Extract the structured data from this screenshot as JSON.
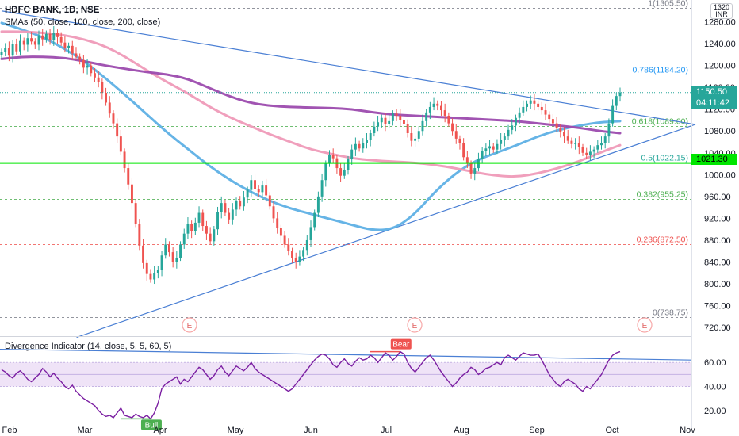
{
  "header": {
    "title": "HDFC BANK, 1D, NSE",
    "sma_legend": "SMAs (50, close, 100, close, 200, close)",
    "oscillator_legend": "Divergence Indicator (14, close, 5, 5, 60, 5)",
    "currency_top": "1320",
    "currency_code": "INR"
  },
  "price_tags": {
    "last_price": "1150.50",
    "countdown": "04:11:42",
    "level": "1021.30"
  },
  "colors": {
    "up": "#26a69a",
    "down": "#ef5350",
    "sma50": "#5eb0e5",
    "sma100": "#ef9ab8",
    "sma200": "#9c4bae",
    "trendline": "#4a7fd4",
    "level_line": "#00e600",
    "rsi_line": "#7b1fa2",
    "rsi_band": "#efe3f7",
    "fib_1": "#787b86",
    "fib_0786": "#2196f3",
    "fib_0618": "#4caf50",
    "fib_05": "#26a69a",
    "fib_0382": "#4caf50",
    "fib_0236": "#ef5350",
    "fib_0": "#787b86",
    "bull_tag": "#4caf50",
    "bear_tag": "#ef5350"
  },
  "chart_data": [
    {
      "type": "candlestick",
      "y_ticks": [
        720,
        760,
        800,
        840,
        880,
        920,
        960,
        1000,
        1040,
        1080,
        1120,
        1160,
        1200,
        1240,
        1280
      ],
      "ylim": [
        710,
        1320
      ],
      "x_ticks": [
        "Feb",
        "Mar",
        "Apr",
        "May",
        "Jun",
        "Jul",
        "Aug",
        "Sep",
        "Oct",
        "Nov"
      ],
      "fib_levels": [
        {
          "label": "1(1305.50)",
          "value": 1305.5,
          "color_key": "fib_1"
        },
        {
          "label": "0.786(1184.20)",
          "value": 1184.2,
          "color_key": "fib_0786"
        },
        {
          "label": "0.618(1089.00)",
          "value": 1089.0,
          "color_key": "fib_0618"
        },
        {
          "label": "0.5(1022.15)",
          "value": 1022.15,
          "color_key": "fib_05"
        },
        {
          "label": "0.382(955.25)",
          "value": 955.25,
          "color_key": "fib_0382"
        },
        {
          "label": "0.236(872.50)",
          "value": 872.5,
          "color_key": "fib_0236"
        },
        {
          "label": "0(738.75)",
          "value": 738.75,
          "color_key": "fib_0"
        }
      ],
      "horizontal_level": 1021.3,
      "last_price": 1150.5,
      "earnings_markers": [
        "E",
        "E",
        "E"
      ],
      "closes": [
        1225,
        1232,
        1218,
        1240,
        1226,
        1245,
        1238,
        1250,
        1244,
        1238,
        1255,
        1248,
        1258,
        1246,
        1260,
        1252,
        1242,
        1232,
        1236,
        1222,
        1216,
        1210,
        1196,
        1200,
        1186,
        1178,
        1170,
        1150,
        1132,
        1112,
        1094,
        1070,
        1042,
        1012,
        982,
        948,
        910,
        870,
        838,
        818,
        808,
        820,
        826,
        852,
        872,
        858,
        840,
        848,
        872,
        892,
        910,
        896,
        912,
        930,
        906,
        892,
        878,
        900,
        932,
        948,
        930,
        918,
        936,
        952,
        942,
        958,
        972,
        990,
        974,
        968,
        980,
        962,
        942,
        920,
        902,
        888,
        872,
        860,
        848,
        840,
        850,
        862,
        880,
        904,
        930,
        960,
        990,
        1020,
        1036,
        1030,
        1012,
        998,
        1008,
        1028,
        1046,
        1056,
        1048,
        1058,
        1064,
        1076,
        1088,
        1096,
        1104,
        1092,
        1098,
        1112,
        1108,
        1100,
        1092,
        1076,
        1062,
        1066,
        1080,
        1098,
        1114,
        1124,
        1130,
        1126,
        1118,
        1108,
        1094,
        1080,
        1066,
        1058,
        1032,
        1020,
        1002,
        1012,
        1028,
        1044,
        1048,
        1052,
        1046,
        1056,
        1064,
        1070,
        1082,
        1090,
        1104,
        1114,
        1124,
        1130,
        1136,
        1130,
        1124,
        1118,
        1110,
        1102,
        1094,
        1086,
        1078,
        1070,
        1062,
        1056,
        1058,
        1050,
        1040,
        1036,
        1042,
        1046,
        1054,
        1058,
        1070,
        1094,
        1126,
        1144,
        1150.5
      ],
      "series": [
        {
          "name": "SMA 50",
          "color_key": "sma50",
          "values": [
            1278,
            1266,
            1252,
            1232,
            1208,
            1178,
            1146,
            1112,
            1078,
            1048,
            1018,
            992,
            970,
            952,
            938,
            928,
            918,
            908,
            898,
            900,
            926,
            968,
            1002,
            1026,
            1040,
            1054,
            1070,
            1082,
            1090,
            1096,
            1098
          ]
        },
        {
          "name": "SMA 100",
          "color_key": "sma100",
          "values": [
            1262,
            1262,
            1260,
            1256,
            1248,
            1236,
            1216,
            1192,
            1170,
            1150,
            1126,
            1106,
            1090,
            1074,
            1060,
            1046,
            1038,
            1030,
            1026,
            1024,
            1022,
            1018,
            1012,
            1004,
            998,
            996,
            1002,
            1012,
            1024,
            1040,
            1054
          ]
        },
        {
          "name": "SMA 200",
          "color_key": "sma200",
          "values": [
            1212,
            1216,
            1216,
            1214,
            1208,
            1200,
            1194,
            1188,
            1184,
            1176,
            1160,
            1144,
            1132,
            1126,
            1124,
            1123,
            1122,
            1120,
            1114,
            1110,
            1108,
            1106,
            1104,
            1102,
            1100,
            1098,
            1094,
            1090,
            1086,
            1080,
            1076
          ]
        }
      ],
      "trendlines": [
        {
          "name": "upper",
          "from": [
            0,
            1300
          ],
          "to": [
            185,
            1092
          ]
        },
        {
          "name": "lower",
          "from": [
            20,
            702
          ],
          "to": [
            185,
            1092
          ]
        }
      ]
    },
    {
      "type": "line",
      "name": "Divergence Indicator",
      "y_ticks": [
        20,
        40,
        60
      ],
      "ylim": [
        8,
        74
      ],
      "band": [
        40,
        60
      ],
      "midline": 50,
      "signals": [
        {
          "label": "Bull",
          "index": 40,
          "value": 13
        },
        {
          "label": "Bear",
          "index": 107,
          "value": 69
        }
      ],
      "values": [
        54,
        52,
        49,
        47,
        51,
        53,
        50,
        46,
        44,
        47,
        50,
        55,
        52,
        48,
        51,
        47,
        44,
        40,
        38,
        41,
        36,
        33,
        30,
        28,
        26,
        24,
        20,
        17,
        15,
        16,
        14,
        18,
        22,
        16,
        15,
        14,
        17,
        15,
        14,
        16,
        13,
        18,
        26,
        38,
        42,
        44,
        46,
        48,
        42,
        46,
        44,
        48,
        52,
        56,
        54,
        50,
        46,
        49,
        54,
        57,
        52,
        49,
        53,
        57,
        55,
        53,
        56,
        60,
        55,
        52,
        50,
        48,
        46,
        44,
        42,
        40,
        38,
        36,
        38,
        42,
        46,
        50,
        54,
        58,
        62,
        65,
        67,
        66,
        63,
        58,
        56,
        60,
        63,
        59,
        57,
        61,
        64,
        62,
        63,
        66,
        64,
        60,
        64,
        68,
        66,
        62,
        65,
        69,
        67,
        60,
        55,
        52,
        56,
        60,
        64,
        66,
        62,
        57,
        52,
        48,
        44,
        40,
        43,
        47,
        50,
        52,
        56,
        54,
        50,
        52,
        55,
        56,
        58,
        60,
        58,
        64,
        66,
        64,
        62,
        65,
        68,
        67,
        66,
        66,
        67,
        62,
        56,
        50,
        46,
        42,
        40,
        44,
        46,
        44,
        42,
        38,
        36,
        40,
        38,
        42,
        46,
        50,
        56,
        62,
        66,
        68,
        69
      ]
    }
  ]
}
